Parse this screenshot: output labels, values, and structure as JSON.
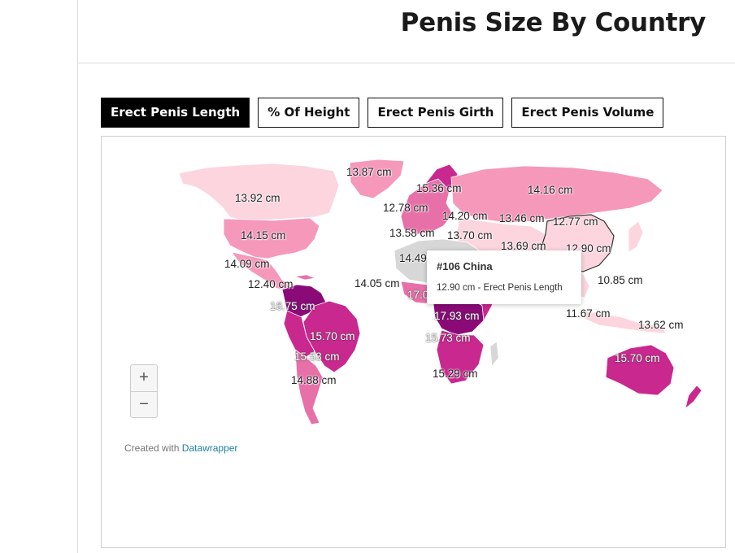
{
  "page": {
    "title": "Penis Size By Country"
  },
  "tabs": [
    {
      "label": "Erect Penis Length",
      "active": true
    },
    {
      "label": "% Of Height",
      "active": false
    },
    {
      "label": "Erect Penis Girth",
      "active": false
    },
    {
      "label": "Erect Penis Volume",
      "active": false
    }
  ],
  "map": {
    "labels": [
      "13.87 cm",
      "13.92 cm",
      "15.36 cm",
      "14.16 cm",
      "12.78 cm",
      "14.20 cm",
      "13.46 cm",
      "12.77 cm",
      "14.15 cm",
      "13.58 cm",
      "13.70 cm",
      "13.69 cm",
      "12.90 cm",
      "14.49",
      "14.09 cm",
      "12.40 cm",
      "14.05 cm",
      "17.0",
      "10.85 cm",
      "16.75 cm",
      "17.93 cm",
      "11.67 cm",
      "15.70 cm",
      "15.73 cm",
      "13.62 cm",
      "15.53 cm",
      "15.70 cm",
      "15.29 cm",
      "14.88 cm"
    ],
    "zoom_in": "+",
    "zoom_out": "−",
    "colors": {
      "lightest": "#fcd5de",
      "light": "#f598b9",
      "medium": "#e870a8",
      "strong": "#c9288f",
      "darkest": "#8a0a78",
      "no_data": "#d7d7d7"
    }
  },
  "tooltip": {
    "title": "#106 China",
    "body": "12.90 cm - Erect Penis Length"
  },
  "credit": {
    "prefix": "Created with",
    "link": "Datawrapper"
  }
}
